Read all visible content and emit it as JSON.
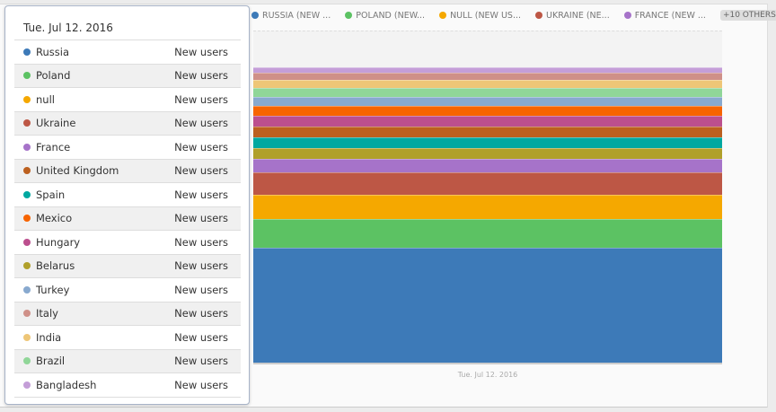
{
  "chart_data": {
    "type": "area",
    "stacked": true,
    "xlabel": "",
    "ylabel": "",
    "x_ticks": [
      "Tue. Jul 12. 2016"
    ],
    "grid": false,
    "legend_placement": "top",
    "legend": {
      "items": [
        "RUSSIA (NEW ...",
        "POLAND (NEW...",
        "NULL (NEW US...",
        "UKRAINE (NE...",
        "FRANCE (NEW ..."
      ],
      "others_label": "+10 OTHERS"
    },
    "series": [
      {
        "name": "Russia",
        "color": "#3d7ab8",
        "value": 129
      },
      {
        "name": "Poland",
        "color": "#5cc263",
        "value": 32
      },
      {
        "name": "null",
        "color": "#f5a800",
        "value": 27
      },
      {
        "name": "Ukraine",
        "color": "#bd5745",
        "value": 25
      },
      {
        "name": "France",
        "color": "#a673c9",
        "value": 15
      },
      {
        "name": "Belarus",
        "color": "#b0a02a",
        "value": 12
      },
      {
        "name": "Spain",
        "color": "#00a8a0",
        "value": 12
      },
      {
        "name": "United Kingdom",
        "color": "#bc601f",
        "value": 12
      },
      {
        "name": "Hungary",
        "color": "#bc4f8e",
        "value": 12
      },
      {
        "name": "Mexico",
        "color": "#f76400",
        "value": 11
      },
      {
        "name": "Turkey",
        "color": "#88a9cf",
        "value": 10
      },
      {
        "name": "Brazil",
        "color": "#90d698",
        "value": 10
      },
      {
        "name": "India",
        "color": "#eec677",
        "value": 9
      },
      {
        "name": "Italy",
        "color": "#cf9088",
        "value": 8
      },
      {
        "name": "Bangladesh",
        "color": "#c49ed8",
        "value": 6
      }
    ]
  },
  "tooltip": {
    "title": "Tue. Jul 12. 2016",
    "rows": [
      {
        "name": "Russia",
        "metric": "New users",
        "color": "#3d7ab8"
      },
      {
        "name": "Poland",
        "metric": "New users",
        "color": "#5cc263"
      },
      {
        "name": "null",
        "metric": "New users",
        "color": "#f5a800"
      },
      {
        "name": "Ukraine",
        "metric": "New users",
        "color": "#bd5745"
      },
      {
        "name": "France",
        "metric": "New users",
        "color": "#a673c9"
      },
      {
        "name": "United Kingdom",
        "metric": "New users",
        "color": "#bc601f"
      },
      {
        "name": "Spain",
        "metric": "New users",
        "color": "#00a8a0"
      },
      {
        "name": "Mexico",
        "metric": "New users",
        "color": "#f76400"
      },
      {
        "name": "Hungary",
        "metric": "New users",
        "color": "#bc4f8e"
      },
      {
        "name": "Belarus",
        "metric": "New users",
        "color": "#b0a02a"
      },
      {
        "name": "Turkey",
        "metric": "New users",
        "color": "#88a9cf"
      },
      {
        "name": "Italy",
        "metric": "New users",
        "color": "#cf9088"
      },
      {
        "name": "India",
        "metric": "New users",
        "color": "#eec677"
      },
      {
        "name": "Brazil",
        "metric": "New users",
        "color": "#90d698"
      },
      {
        "name": "Bangladesh",
        "metric": "New users",
        "color": "#c49ed8"
      }
    ]
  }
}
